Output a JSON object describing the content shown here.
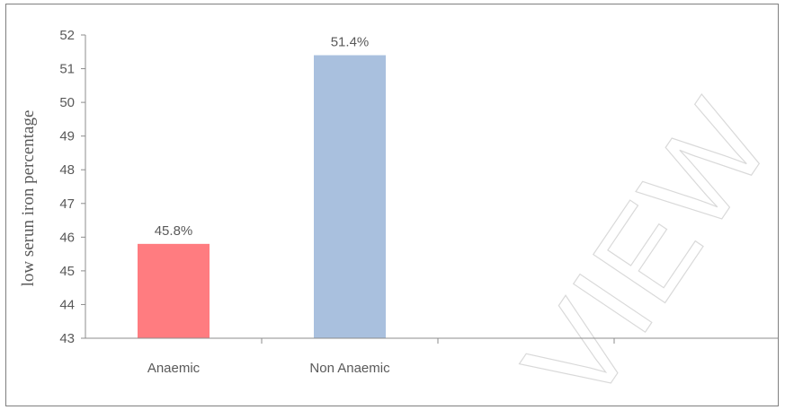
{
  "chart_data": {
    "type": "bar",
    "categories": [
      "Anaemic",
      "Non Anaemic",
      ""
    ],
    "values": [
      45.8,
      51.4,
      null
    ],
    "data_labels": [
      "45.8%",
      "51.4%",
      ""
    ],
    "bar_colors": [
      "#ff7c80",
      "#a9c0de"
    ],
    "title": "",
    "xlabel": "",
    "ylabel": "low serun iron percentage",
    "ylim": [
      43,
      52
    ],
    "yticks": [
      43,
      44,
      45,
      46,
      47,
      48,
      49,
      50,
      51,
      52
    ],
    "grid": false,
    "legend": "none"
  },
  "watermark": {
    "text": "VIEW"
  }
}
